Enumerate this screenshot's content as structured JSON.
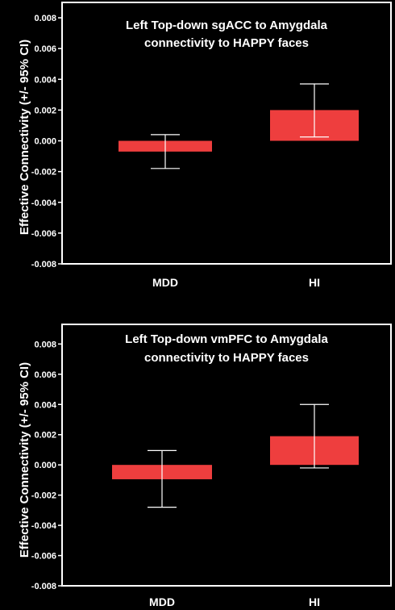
{
  "chart_data": [
    {
      "type": "bar",
      "title": [
        "Left Top-down sgACC to Amygdala",
        "connectivity to HAPPY faces"
      ],
      "ylabel": "Effective Connectivity (+/- 95% CI)",
      "categories": [
        "MDD",
        "HI"
      ],
      "values": [
        -0.0007,
        0.002
      ],
      "ci_low": [
        -0.0018,
        0.00025
      ],
      "ci_high": [
        0.0004,
        0.0037
      ],
      "ylim": [
        -0.008,
        0.009
      ],
      "yticks": [
        -0.008,
        -0.006,
        -0.004,
        -0.002,
        0.0,
        0.002,
        0.004,
        0.006,
        0.008
      ],
      "yticklabels": [
        "-0.008",
        "-0.006",
        "-0.004",
        "-0.002",
        "0.000",
        "0.002",
        "0.004",
        "0.006",
        "0.008"
      ],
      "bar_color": "#ee3e3e",
      "grid": false
    },
    {
      "type": "bar",
      "title": [
        "Left Top-down vmPFC to Amygdala",
        "connectivity to HAPPY faces"
      ],
      "ylabel": "Effective Connectivity (+/- 95% CI)",
      "categories": [
        "MDD",
        "HI"
      ],
      "values": [
        -0.00095,
        0.0019
      ],
      "ci_low": [
        -0.0028,
        -0.0002
      ],
      "ci_high": [
        0.00095,
        0.004
      ],
      "ylim": [
        -0.008,
        0.0093
      ],
      "yticks": [
        -0.008,
        -0.006,
        -0.004,
        -0.002,
        0.0,
        0.002,
        0.004,
        0.006,
        0.008
      ],
      "yticklabels": [
        "-0.008",
        "-0.006",
        "-0.004",
        "-0.002",
        "0.000",
        "0.002",
        "0.004",
        "0.006",
        "0.008"
      ],
      "bar_color": "#ee3e3e",
      "grid": false
    }
  ]
}
